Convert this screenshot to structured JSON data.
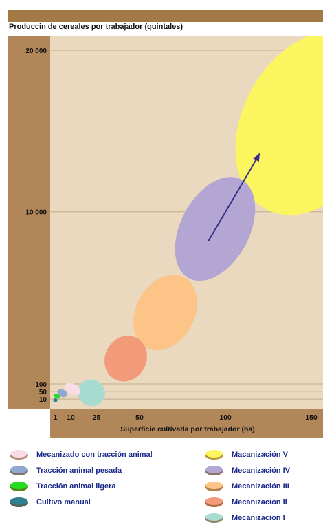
{
  "colors": {
    "frame": "#b1875a",
    "frame_bar": "#a37a45",
    "plot_bg": "#ead8bf",
    "grid": "#c4ab8a",
    "arrow": "#3b2e8a",
    "legend_text": "#1c2a8c"
  },
  "chart_data": {
    "type": "scatter",
    "title": "Produccin de cereales por trabajador (quintales)",
    "xlabel": "Superficie cultivada por trabajador (ha)",
    "ylabel": "",
    "x_ticks": [
      {
        "value": 1,
        "label": "1"
      },
      {
        "value": 10,
        "label": "10"
      },
      {
        "value": 25,
        "label": "25"
      },
      {
        "value": 50,
        "label": "50"
      },
      {
        "value": 100,
        "label": "100"
      },
      {
        "value": 150,
        "label": "150"
      }
    ],
    "y_ticks": [
      {
        "value": 10,
        "label": "10"
      },
      {
        "value": 50,
        "label": "50"
      },
      {
        "value": 100,
        "label": "100"
      },
      {
        "value": 10000,
        "label": "10 000"
      },
      {
        "value": 20000,
        "label": "20 000"
      }
    ],
    "y_scale_knots": [
      [
        0,
        0
      ],
      [
        10,
        0.019
      ],
      [
        50,
        0.041
      ],
      [
        100,
        0.062
      ],
      [
        10000,
        0.546
      ],
      [
        20000,
        1.0
      ]
    ],
    "grid": true,
    "legend_position": "bottom",
    "series": [
      {
        "name": "Cultivo manual",
        "color": "#2e7f8f",
        "x": 1,
        "y": 10,
        "rx": 1,
        "ry": 5
      },
      {
        "name": "Tracción animal ligera",
        "color": "#22dd22",
        "x": 2,
        "y": 25,
        "rx": 2,
        "ry": 10
      },
      {
        "name": "Tracción animal pesada",
        "color": "#8fa8d0",
        "x": 5,
        "y": 42,
        "rx": 3,
        "ry": 20
      },
      {
        "name": "Mecanizado con tracción animal",
        "color": "#f8dce6",
        "x": 11,
        "y": 70,
        "rx": 5,
        "ry": 35
      },
      {
        "name": "Mecanización I",
        "color": "#a6dccf",
        "x": 22,
        "y": 150,
        "rx": 8,
        "ry": 200
      },
      {
        "name": "Mecanización II",
        "color": "#f29b7a",
        "x": 42,
        "y": 1550,
        "rx": 12,
        "ry": 1350
      },
      {
        "name": "Mecanización III",
        "color": "#fcc487",
        "x": 65,
        "y": 4200,
        "rx": 17,
        "ry": 2300
      },
      {
        "name": "Mecanización IV",
        "color": "#b4a6d2",
        "x": 94,
        "y": 9100,
        "rx": 20,
        "ry": 3300
      },
      {
        "name": "Macanización V",
        "color": "#fbf55f",
        "x": 150,
        "y": 15500,
        "rx": 40,
        "ry": 6000
      }
    ],
    "arrow": {
      "from": [
        90,
        8300
      ],
      "to": [
        120,
        13600
      ]
    }
  },
  "legend": {
    "left": [
      {
        "label": "Mecanizado con tracción animal",
        "color": "#f8dce6"
      },
      {
        "label": "Tracción animal pesada",
        "color": "#8fa8d0"
      },
      {
        "label": "Tracción animal ligera",
        "color": "#22dd22"
      },
      {
        "label": "Cultivo manual",
        "color": "#2e7f8f"
      }
    ],
    "right": [
      {
        "label": "Macanización V",
        "color": "#fbf55f"
      },
      {
        "label": "Mecanización IV",
        "color": "#b4a6d2"
      },
      {
        "label": "Mecanización III",
        "color": "#fcc487"
      },
      {
        "label": "Mecanización II",
        "color": "#f29b7a"
      },
      {
        "label": "Mecanización I",
        "color": "#a6dccf"
      }
    ]
  }
}
